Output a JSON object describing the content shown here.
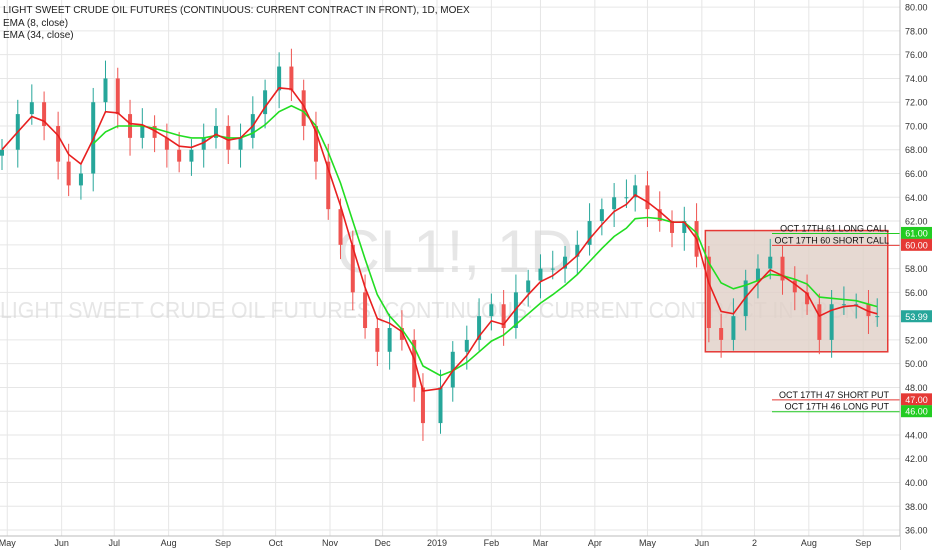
{
  "header": {
    "title": "LIGHT SWEET CRUDE OIL FUTURES (CONTINUOUS: CURRENT CONTRACT IN FRONT), 1D, MOEX",
    "indicator_1": "EMA (8, close)",
    "indicator_2": "EMA (34, close)"
  },
  "watermark": {
    "symbol": "CL1!, 1D",
    "name": "LIGHT SWEET CRUDE OIL FUTURES (CONTINUOUS: CURRENT CONTRACT IN FRONT)"
  },
  "colors": {
    "background": "#ffffff",
    "grid": "#e6e6e6",
    "up_candle": "#26a69a",
    "down_candle": "#ef5350",
    "ema_fast": "#e82020",
    "ema_slow": "#22dd22",
    "box_fill": "#e0d0c7",
    "box_border": "#e53935",
    "call_line": "#22cc22",
    "put_line": "#e53935"
  },
  "annotations": [
    {
      "label": "OCT 17TH 61 LONG CALL",
      "price": 61,
      "color": "green"
    },
    {
      "label": "OCT 17TH 60 SHORT CALL",
      "price": 60,
      "color": "red"
    },
    {
      "label": "OCT 17TH 47 SHORT PUT",
      "price": 47,
      "color": "red"
    },
    {
      "label": "OCT 17TH 46 LONG PUT",
      "price": 46,
      "color": "green"
    }
  ],
  "price_badges": [
    {
      "text": "61.00",
      "price": 61,
      "bg": "#22cc22"
    },
    {
      "text": "60.00",
      "price": 60,
      "bg": "#e53935"
    },
    {
      "text": "53.99",
      "price": 53.99,
      "bg": "#26a69a"
    },
    {
      "text": "47.00",
      "price": 47,
      "bg": "#e53935"
    },
    {
      "text": "46.00",
      "price": 46,
      "bg": "#22cc22"
    }
  ],
  "range_box": {
    "x_start": "2019-06-03",
    "x_end": "2019-09-15",
    "price_low": 51.0,
    "price_high": 61.2
  },
  "chart_data": {
    "type": "line",
    "title": "LIGHT SWEET CRUDE OIL FUTURES (CONTINUOUS: CURRENT CONTRACT IN FRONT), 1D, MOEX",
    "x_ticks": [
      "May",
      "Jun",
      "Jul",
      "Aug",
      "Sep",
      "Oct",
      "Nov",
      "Dec",
      "2019",
      "Feb",
      "Mar",
      "Apr",
      "May",
      "Jun",
      "2",
      "Aug",
      "Sep"
    ],
    "y_ticks": [
      80,
      78,
      76,
      74,
      72,
      70,
      68,
      66,
      64,
      62,
      60,
      58,
      56,
      54,
      52,
      50,
      48,
      46,
      44,
      42,
      40,
      38,
      36
    ],
    "y_tick_labels": [
      "80.00",
      "78.00",
      "76.00",
      "74.00",
      "72.00",
      "70.00",
      "68.00",
      "66.00",
      "64.00",
      "62.00",
      "60.00",
      "58.00",
      "56.00",
      "54.00",
      "52.00",
      "50.00",
      "48.00",
      "46.00",
      "44.00",
      "42.00",
      "40.00",
      "38.00",
      "36.00"
    ],
    "ylim": [
      35.5,
      80.6
    ],
    "close_series": {
      "name": "close",
      "x": [
        "2018-04-28",
        "2018-05-07",
        "2018-05-15",
        "2018-05-22",
        "2018-05-30",
        "2018-06-05",
        "2018-06-12",
        "2018-06-19",
        "2018-06-26",
        "2018-07-03",
        "2018-07-10",
        "2018-07-17",
        "2018-07-24",
        "2018-07-31",
        "2018-08-07",
        "2018-08-14",
        "2018-08-21",
        "2018-08-28",
        "2018-09-04",
        "2018-09-11",
        "2018-09-18",
        "2018-09-25",
        "2018-10-03",
        "2018-10-10",
        "2018-10-17",
        "2018-10-24",
        "2018-10-31",
        "2018-11-07",
        "2018-11-14",
        "2018-11-21",
        "2018-11-28",
        "2018-12-05",
        "2018-12-12",
        "2018-12-19",
        "2018-12-24",
        "2019-01-03",
        "2019-01-10",
        "2019-01-18",
        "2019-01-25",
        "2019-02-01",
        "2019-02-08",
        "2019-02-15",
        "2019-02-22",
        "2019-03-01",
        "2019-03-08",
        "2019-03-15",
        "2019-03-22",
        "2019-03-29",
        "2019-04-05",
        "2019-04-12",
        "2019-04-19",
        "2019-04-24",
        "2019-05-01",
        "2019-05-08",
        "2019-05-15",
        "2019-05-22",
        "2019-05-29",
        "2019-06-05",
        "2019-06-12",
        "2019-06-19",
        "2019-06-26",
        "2019-07-03",
        "2019-07-10",
        "2019-07-17",
        "2019-07-24",
        "2019-07-31",
        "2019-08-07",
        "2019-08-14",
        "2019-08-21",
        "2019-08-28",
        "2019-09-04",
        "2019-09-09"
      ],
      "values": [
        68,
        71,
        72,
        70,
        67,
        65,
        66,
        72,
        74,
        71,
        69,
        70,
        69,
        68,
        67,
        68,
        69,
        70,
        68,
        69,
        71,
        73,
        75,
        73,
        70,
        67,
        63,
        60,
        56,
        53,
        51,
        53,
        52,
        48,
        45,
        48,
        51,
        52,
        54,
        55,
        53,
        56,
        57,
        58,
        58,
        59,
        60,
        62,
        63,
        64,
        64,
        65,
        63,
        62,
        61,
        62,
        59,
        53,
        52,
        54,
        57,
        58,
        59,
        57,
        56,
        55,
        52,
        55,
        55,
        55,
        54,
        54
      ]
    },
    "series": [
      {
        "name": "EMA (8, close)",
        "values": [
          68,
          69.5,
          70.8,
          70.4,
          69.2,
          67.6,
          66.8,
          68.9,
          71.2,
          71.1,
          70.2,
          70.1,
          69.6,
          69.0,
          68.3,
          68.2,
          68.6,
          69.3,
          68.8,
          69.0,
          70.0,
          71.6,
          73.2,
          73.1,
          71.7,
          69.5,
          66.4,
          63.3,
          59.8,
          56.4,
          53.8,
          53.4,
          52.7,
          50.4,
          47.7,
          47.9,
          49.4,
          50.7,
          52.3,
          53.6,
          53.3,
          54.6,
          55.8,
          56.9,
          57.4,
          58.2,
          59.1,
          60.5,
          61.7,
          62.8,
          63.4,
          64.2,
          63.6,
          62.8,
          61.9,
          61.9,
          60.5,
          56.8,
          54.4,
          54.2,
          55.6,
          56.8,
          57.9,
          57.4,
          56.7,
          55.9,
          54.0,
          54.5,
          54.8,
          54.9,
          54.4,
          54.2
        ]
      },
      {
        "name": "EMA (34, close)",
        "values": [
          null,
          null,
          null,
          null,
          null,
          null,
          null,
          68.5,
          69.5,
          70.0,
          70.0,
          70.0,
          69.8,
          69.5,
          69.2,
          69.0,
          69.0,
          69.2,
          69.0,
          69.0,
          69.4,
          70.1,
          71.2,
          71.7,
          71.2,
          70.0,
          67.8,
          65.2,
          62.0,
          58.8,
          55.8,
          54.0,
          52.9,
          51.4,
          49.8,
          49.0,
          49.4,
          50.1,
          51.0,
          51.9,
          52.4,
          53.3,
          54.2,
          55.1,
          55.8,
          56.6,
          57.5,
          58.6,
          59.7,
          60.7,
          61.4,
          62.2,
          62.3,
          62.2,
          61.9,
          61.9,
          61.0,
          58.5,
          56.8,
          56.3,
          56.6,
          57.0,
          57.5,
          57.4,
          57.1,
          56.7,
          55.6,
          55.5,
          55.4,
          55.3,
          55.0,
          54.8
        ]
      }
    ]
  }
}
